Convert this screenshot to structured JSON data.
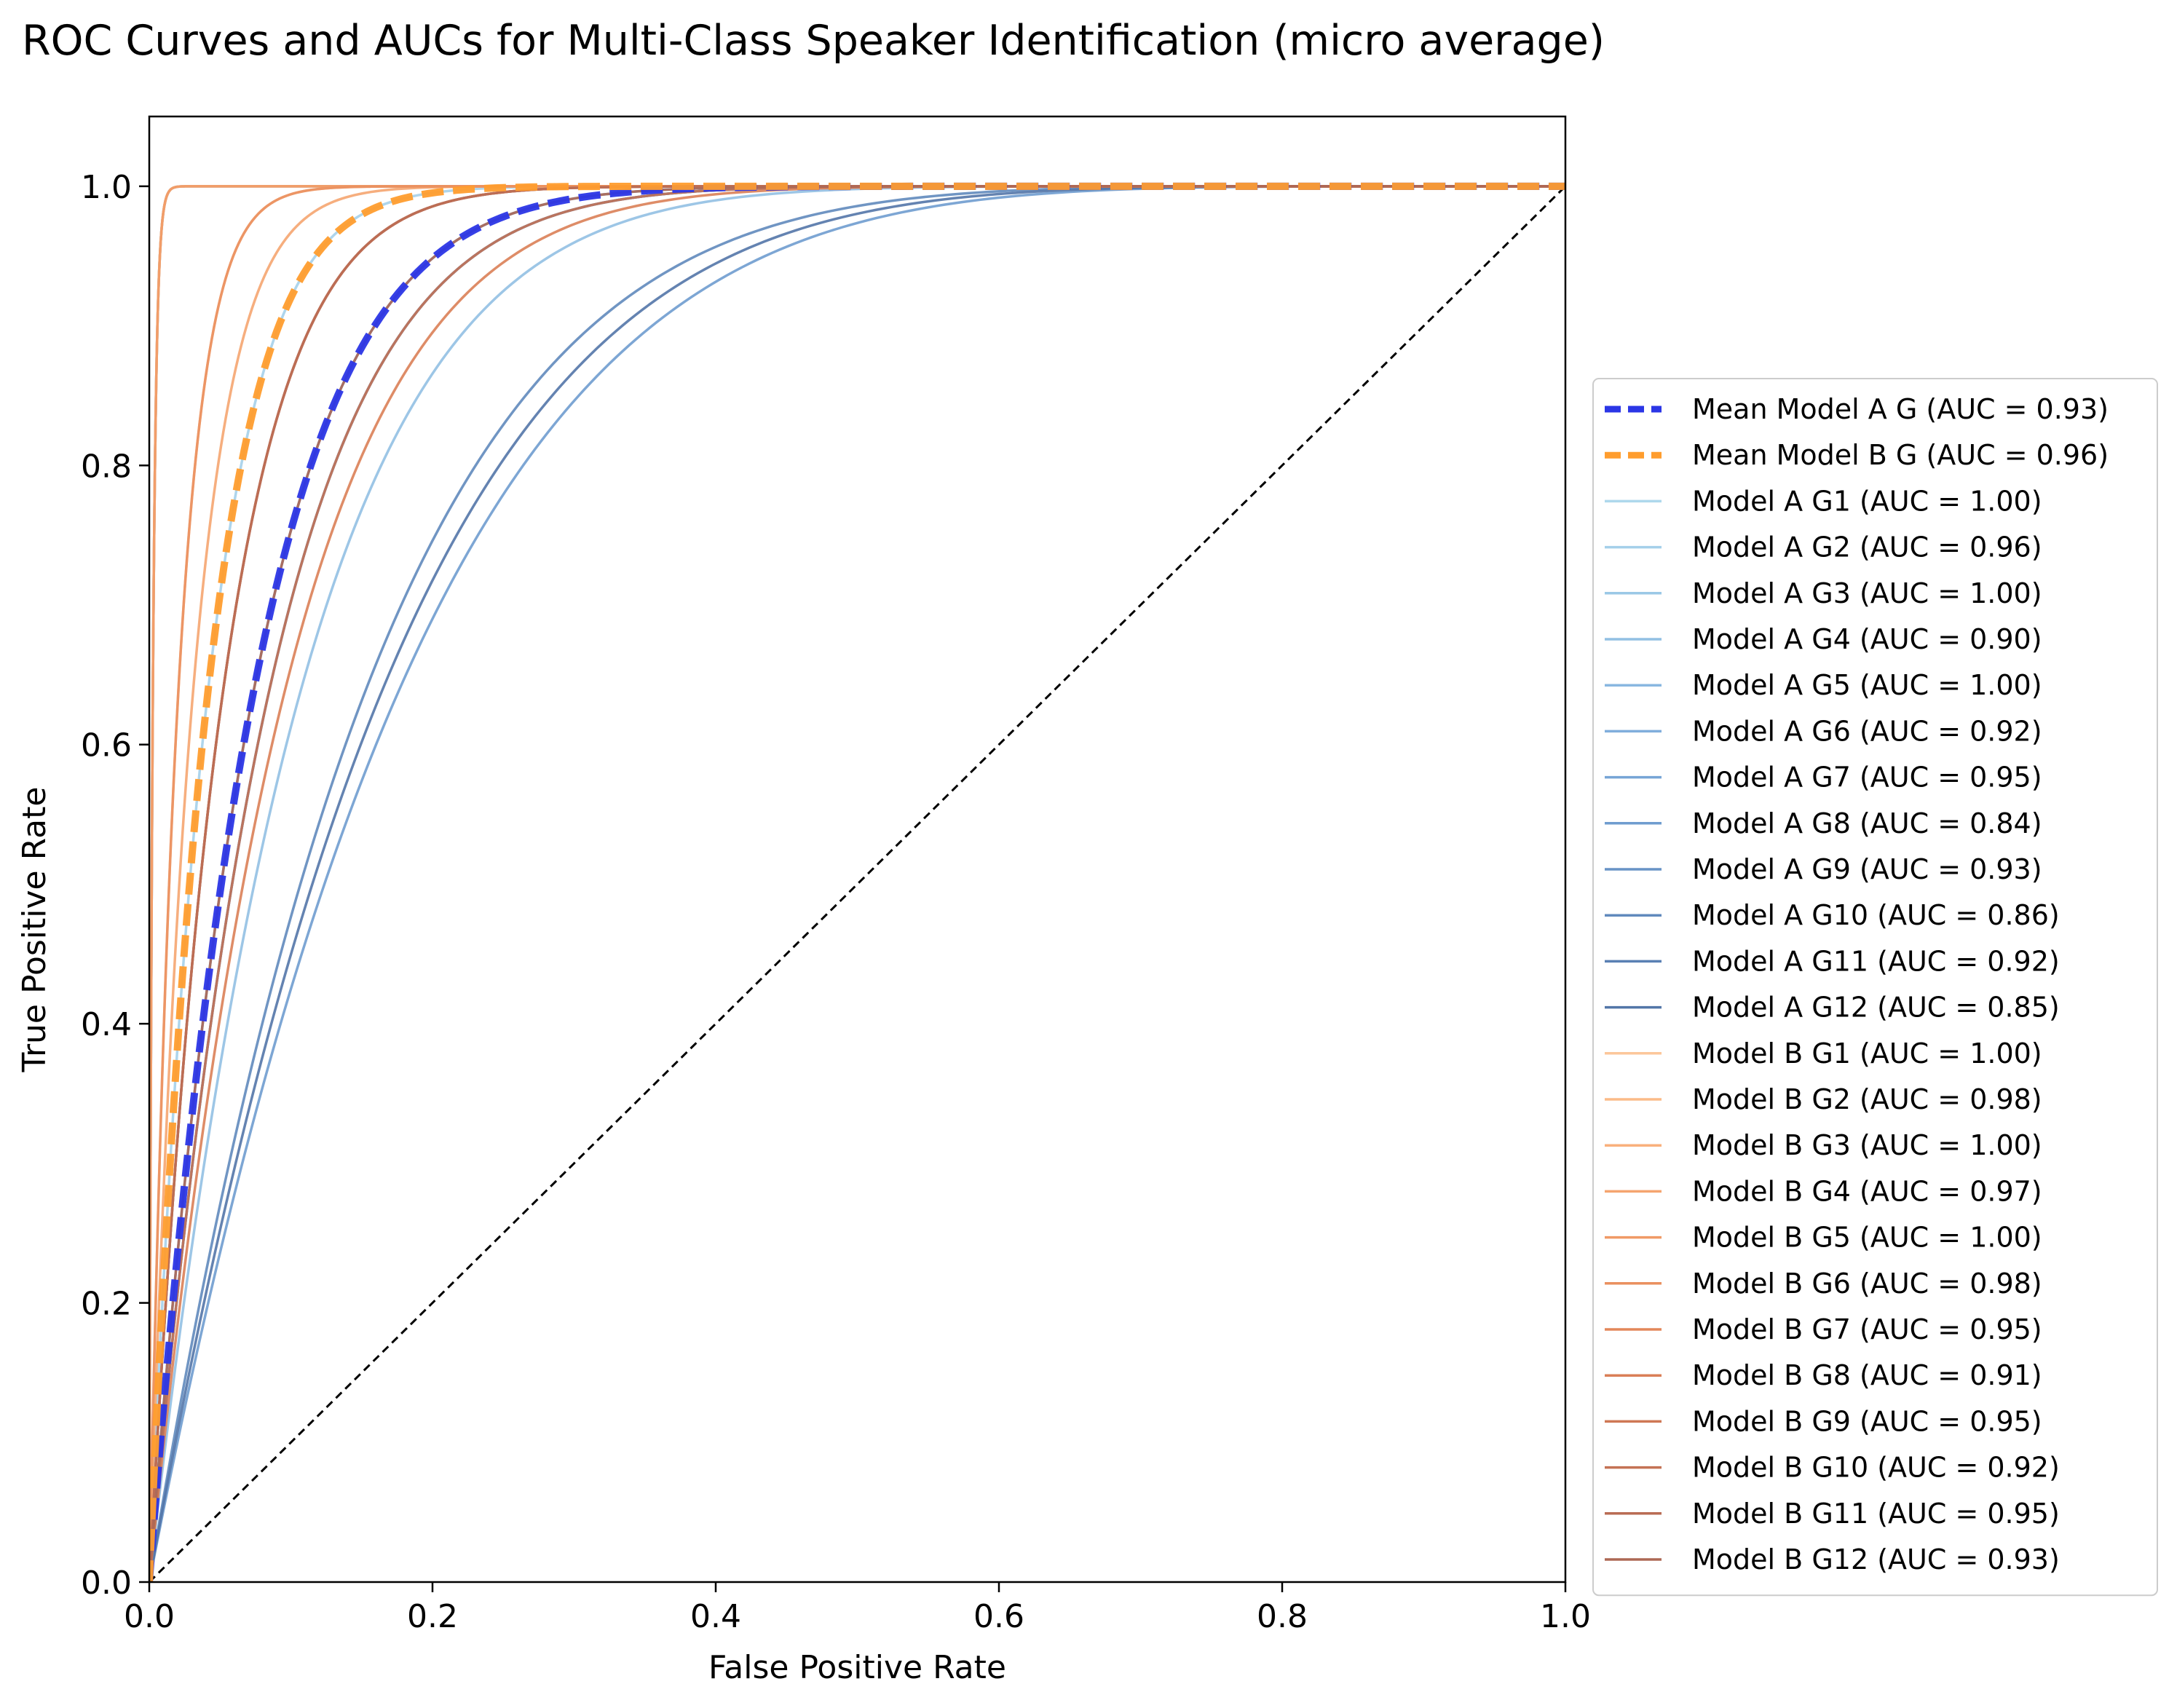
{
  "chart_data": {
    "type": "line",
    "title": "ROC Curves and AUCs for Multi-Class Speaker Identification (micro average)",
    "xlabel": "False Positive Rate",
    "ylabel": "True Positive Rate",
    "xlim": [
      0.0,
      1.0
    ],
    "ylim": [
      0.0,
      1.05
    ],
    "x_ticks": [
      "0.0",
      "0.2",
      "0.4",
      "0.6",
      "0.8",
      "1.0"
    ],
    "y_ticks": [
      "0.0",
      "0.2",
      "0.4",
      "0.6",
      "0.8",
      "1.0"
    ],
    "grid": false,
    "legend_position": "center-right outside",
    "series": [
      {
        "name": "Mean Model A G (AUC = 0.93)",
        "auc": 0.93,
        "color": "#2b36e6",
        "style": "dashed-thick"
      },
      {
        "name": "Mean Model B G (AUC = 0.96)",
        "auc": 0.96,
        "color": "#ff9d2e",
        "style": "dashed-thick"
      },
      {
        "name": "Model A G1 (AUC = 1.00)",
        "auc": 1.0,
        "color": "#aed8ec",
        "style": "solid"
      },
      {
        "name": "Model A G2 (AUC = 0.96)",
        "auc": 0.96,
        "color": "#a5d0ea",
        "style": "solid"
      },
      {
        "name": "Model A G3 (AUC = 1.00)",
        "auc": 1.0,
        "color": "#9bc8e6",
        "style": "solid"
      },
      {
        "name": "Model A G4 (AUC = 0.90)",
        "auc": 0.9,
        "color": "#92c0e3",
        "style": "solid"
      },
      {
        "name": "Model A G5 (AUC = 1.00)",
        "auc": 1.0,
        "color": "#89b7e0",
        "style": "solid"
      },
      {
        "name": "Model A G6 (AUC = 0.92)",
        "auc": 0.92,
        "color": "#80aedc",
        "style": "solid"
      },
      {
        "name": "Model A G7 (AUC = 0.95)",
        "auc": 0.95,
        "color": "#77a5d6",
        "style": "solid"
      },
      {
        "name": "Model A G8 (AUC = 0.84)",
        "auc": 0.84,
        "color": "#6f9ccf",
        "style": "solid"
      },
      {
        "name": "Model A G9 (AUC = 0.93)",
        "auc": 0.93,
        "color": "#6893c6",
        "style": "solid"
      },
      {
        "name": "Model A G10 (AUC = 0.86)",
        "auc": 0.86,
        "color": "#618abd",
        "style": "solid"
      },
      {
        "name": "Model A G11 (AUC = 0.92)",
        "auc": 0.92,
        "color": "#5a80b3",
        "style": "solid"
      },
      {
        "name": "Model A G12 (AUC = 0.85)",
        "auc": 0.85,
        "color": "#5376a8",
        "style": "solid"
      },
      {
        "name": "Model B G1 (AUC = 1.00)",
        "auc": 1.0,
        "color": "#fcc79a",
        "style": "solid"
      },
      {
        "name": "Model B G2 (AUC = 0.98)",
        "auc": 0.98,
        "color": "#fbbb88",
        "style": "solid"
      },
      {
        "name": "Model B G3 (AUC = 1.00)",
        "auc": 1.0,
        "color": "#f9b07c",
        "style": "solid"
      },
      {
        "name": "Model B G4 (AUC = 0.97)",
        "auc": 0.97,
        "color": "#f5a570",
        "style": "solid"
      },
      {
        "name": "Model B G5 (AUC = 1.00)",
        "auc": 1.0,
        "color": "#f09a66",
        "style": "solid"
      },
      {
        "name": "Model B G6 (AUC = 0.98)",
        "auc": 0.98,
        "color": "#ea905f",
        "style": "solid"
      },
      {
        "name": "Model B G7 (AUC = 0.95)",
        "auc": 0.95,
        "color": "#e3875a",
        "style": "solid"
      },
      {
        "name": "Model B G8 (AUC = 0.91)",
        "auc": 0.91,
        "color": "#da7f57",
        "style": "solid"
      },
      {
        "name": "Model B G9 (AUC = 0.95)",
        "auc": 0.95,
        "color": "#cf7855",
        "style": "solid"
      },
      {
        "name": "Model B G10 (AUC = 0.92)",
        "auc": 0.92,
        "color": "#c47254",
        "style": "solid"
      },
      {
        "name": "Model B G11 (AUC = 0.95)",
        "auc": 0.95,
        "color": "#b96c54",
        "style": "solid"
      },
      {
        "name": "Model B G12 (AUC = 0.93)",
        "auc": 0.93,
        "color": "#ad6855",
        "style": "solid"
      }
    ],
    "chance_line": {
      "x": [
        0,
        1
      ],
      "y": [
        0,
        1
      ],
      "color": "#000000",
      "style": "dashed"
    }
  }
}
